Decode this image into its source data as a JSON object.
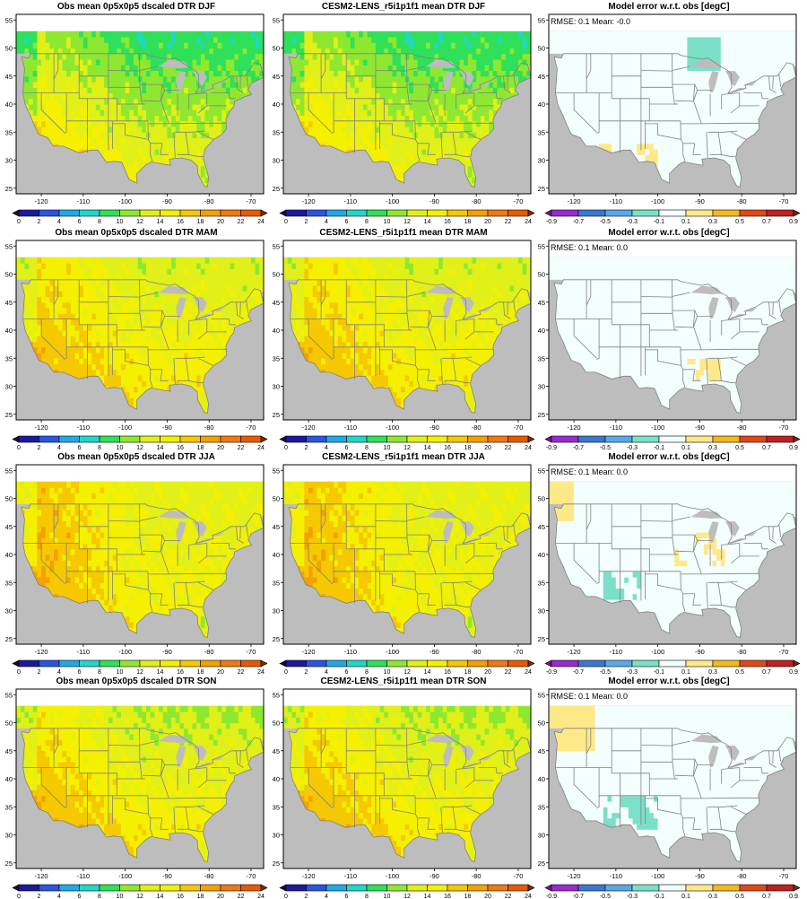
{
  "rows": [
    {
      "season": "DJF",
      "obs_title": "Obs mean 0p5x0p5 dscaled DTR DJF",
      "model_title": "CESM2-LENS_r5i1p1f1 mean DTR DJF",
      "err_title": "Model error w.r.t. obs [degC]",
      "stats": "RMSE: 0.1   Mean: -0.0"
    },
    {
      "season": "MAM",
      "obs_title": "Obs mean 0p5x0p5 dscaled DTR MAM",
      "model_title": "CESM2-LENS_r5i1p1f1 mean DTR MAM",
      "err_title": "Model error w.r.t. obs [degC]",
      "stats": "RMSE: 0.1   Mean: 0.0"
    },
    {
      "season": "JJA",
      "obs_title": "Obs mean 0p5x0p5 dscaled DTR JJA",
      "model_title": "CESM2-LENS_r5i1p1f1 mean DTR JJA",
      "err_title": "Model error w.r.t. obs [degC]",
      "stats": "RMSE: 0.1   Mean: 0.0"
    },
    {
      "season": "SON",
      "obs_title": "Obs mean 0p5x0p5 dscaled DTR SON",
      "model_title": "CESM2-LENS_r5i1p1f1 mean DTR SON",
      "err_title": "Model error w.r.t. obs [degC]",
      "stats": "RMSE: 0.1   Mean: 0.0"
    }
  ],
  "axes": {
    "lon_ticks": [
      "-120",
      "-110",
      "-100",
      "-90",
      "-80",
      "-70"
    ],
    "lat_ticks": [
      "25",
      "30",
      "35",
      "40",
      "45",
      "50",
      "55"
    ]
  },
  "dtr_colorbar": {
    "labels": [
      "0",
      "2",
      "4",
      "6",
      "8",
      "10",
      "12",
      "14",
      "16",
      "18",
      "20",
      "22",
      "24"
    ],
    "colors": [
      "#2b0040",
      "#1a1aa0",
      "#2a55e0",
      "#22a8e6",
      "#20d8c8",
      "#2fe05a",
      "#8ee830",
      "#e0f018",
      "#f4f000",
      "#f5c800",
      "#f4a000",
      "#ef7a10",
      "#e85a00",
      "#7a2a10"
    ]
  },
  "err_colorbar": {
    "labels": [
      "-0.9",
      "-0.7",
      "-0.5",
      "-0.3",
      "-0.1",
      "0.1",
      "0.3",
      "0.5",
      "0.7",
      "0.9"
    ],
    "colors": [
      "#7a10a0",
      "#9a2ad0",
      "#3a78d0",
      "#5aa8e8",
      "#7ae0c8",
      "#f2fffc",
      "#ffe888",
      "#f4b820",
      "#e04818",
      "#c02020",
      "#6a3010"
    ]
  },
  "colors": {
    "land_bg": "#f2fffa",
    "ocean_gray": "#bdbdbd",
    "border_gray": "#808080"
  }
}
